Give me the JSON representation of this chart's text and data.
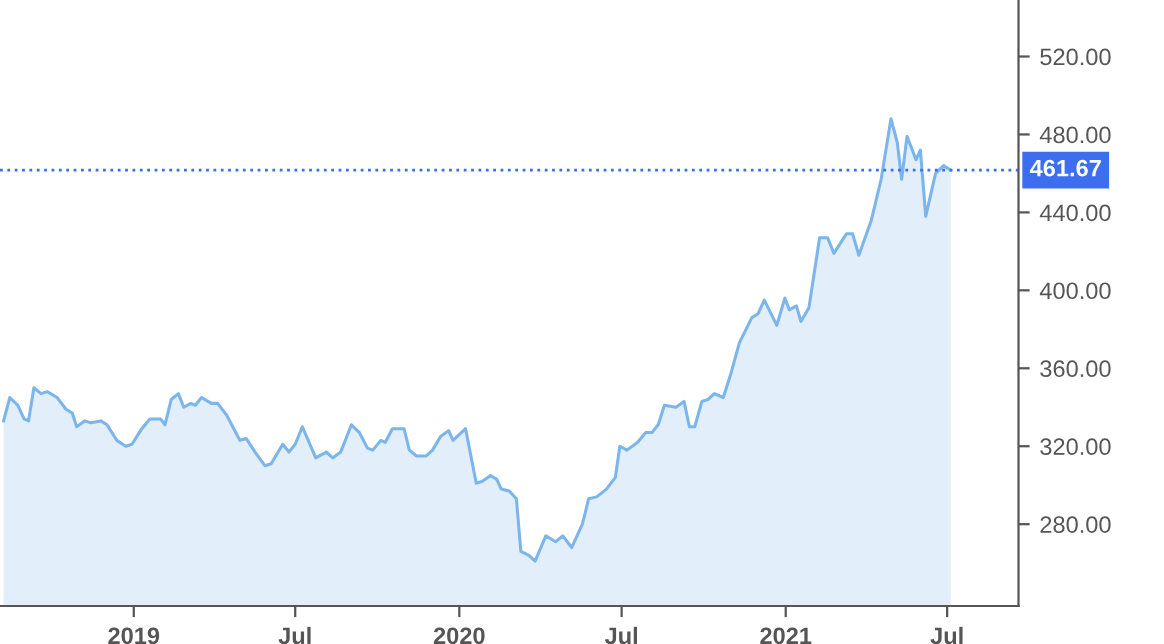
{
  "chart_data": {
    "type": "area",
    "x": [
      "2018-08-08",
      "2018-08-15",
      "2018-08-24",
      "2018-08-31",
      "2018-09-05",
      "2018-09-11",
      "2018-09-19",
      "2018-09-26",
      "2018-10-07",
      "2018-10-17",
      "2018-10-24",
      "2018-10-29",
      "2018-11-07",
      "2018-11-14",
      "2018-11-25",
      "2018-12-02",
      "2018-12-13",
      "2018-12-23",
      "2018-12-30",
      "2019-01-10",
      "2019-01-19",
      "2019-01-31",
      "2019-02-05",
      "2019-02-12",
      "2019-02-20",
      "2019-02-26",
      "2019-03-06",
      "2019-03-11",
      "2019-03-18",
      "2019-03-29",
      "2019-04-05",
      "2019-04-15",
      "2019-04-30",
      "2019-05-07",
      "2019-05-17",
      "2019-05-28",
      "2019-06-04",
      "2019-06-17",
      "2019-06-24",
      "2019-07-01",
      "2019-07-09",
      "2019-07-24",
      "2019-08-05",
      "2019-08-12",
      "2019-08-21",
      "2019-09-02",
      "2019-09-11",
      "2019-09-20",
      "2019-09-26",
      "2019-10-05",
      "2019-10-10",
      "2019-10-18",
      "2019-10-31",
      "2019-11-06",
      "2019-11-14",
      "2019-11-25",
      "2019-12-02",
      "2019-12-11",
      "2019-12-20",
      "2019-12-25",
      "2020-01-08",
      "2020-01-20",
      "2020-01-27",
      "2020-02-05",
      "2020-02-12",
      "2020-02-17",
      "2020-02-26",
      "2020-03-05",
      "2020-03-10",
      "2020-03-19",
      "2020-03-26",
      "2020-04-07",
      "2020-04-18",
      "2020-04-26",
      "2020-05-06",
      "2020-05-18",
      "2020-05-25",
      "2020-06-03",
      "2020-06-14",
      "2020-06-24",
      "2020-06-29",
      "2020-07-07",
      "2020-07-19",
      "2020-07-28",
      "2020-08-04",
      "2020-08-11",
      "2020-08-18",
      "2020-08-31",
      "2020-09-09",
      "2020-09-15",
      "2020-09-21",
      "2020-09-29",
      "2020-10-06",
      "2020-10-13",
      "2020-10-23",
      "2020-11-01",
      "2020-11-10",
      "2020-11-24",
      "2020-12-01",
      "2020-12-08",
      "2020-12-22",
      "2020-12-31",
      "2021-01-05",
      "2021-01-13",
      "2021-01-18",
      "2021-01-27",
      "2021-02-08",
      "2021-02-17",
      "2021-02-24",
      "2021-03-10",
      "2021-03-17",
      "2021-03-24",
      "2021-04-07",
      "2021-04-18",
      "2021-04-29",
      "2021-05-06",
      "2021-05-11",
      "2021-05-17",
      "2021-05-23",
      "2021-05-27",
      "2021-06-01",
      "2021-06-07",
      "2021-06-13",
      "2021-06-18",
      "2021-06-27",
      "2021-07-05"
    ],
    "series": [
      {
        "color": "#7cb5ec",
        "values": [
          333,
          345,
          341,
          334,
          333,
          350,
          347,
          348,
          345,
          339,
          337,
          330,
          333,
          332,
          333,
          331,
          323,
          320,
          321,
          329,
          334,
          334,
          331,
          344,
          347,
          340,
          342,
          341,
          345,
          342,
          342,
          336,
          323,
          324,
          317,
          310,
          311,
          321,
          317,
          321,
          330,
          314,
          317,
          314,
          317,
          331,
          327,
          319,
          318,
          323,
          322,
          329,
          329,
          318,
          315,
          315,
          318,
          325,
          328,
          323,
          329,
          301,
          302,
          305,
          303,
          298,
          297,
          293,
          266,
          264,
          261,
          274,
          271,
          274,
          268,
          280,
          293,
          294,
          298,
          304,
          320,
          318,
          322,
          327,
          327,
          331,
          341,
          340,
          343,
          330,
          330,
          343,
          344,
          347,
          345,
          358,
          373,
          386,
          388,
          395,
          382,
          396,
          390,
          392,
          384,
          391,
          427,
          427,
          419,
          429,
          429,
          418,
          436,
          457,
          488,
          476,
          457,
          479,
          472,
          467,
          472,
          438,
          450,
          460,
          464,
          461.67
        ]
      }
    ],
    "xlim": [
      "2018-08-04",
      "2021-09-19"
    ],
    "xticks": [
      {
        "value": "2019-01-01",
        "label": "2019"
      },
      {
        "value": "2019-07-01",
        "label": "Jul"
      },
      {
        "value": "2020-01-01",
        "label": "2020"
      },
      {
        "value": "2020-07-01",
        "label": "Jul"
      },
      {
        "value": "2021-01-01",
        "label": "2021"
      },
      {
        "value": "2021-07-01",
        "label": "Jul"
      }
    ],
    "ylim": [
      238,
      549
    ],
    "yticks": [
      {
        "value": 280,
        "label": "280.00"
      },
      {
        "value": 320,
        "label": "320.00"
      },
      {
        "value": 360,
        "label": "360.00"
      },
      {
        "value": 400,
        "label": "400.00"
      },
      {
        "value": 440,
        "label": "440.00"
      },
      {
        "value": 480,
        "label": "480.00"
      },
      {
        "value": 520,
        "label": "520.00"
      }
    ],
    "ref_lines": [
      {
        "axis": "y",
        "value": 461.67,
        "label": "461.67",
        "color": "#3d6ef0",
        "line_style": "dotted"
      }
    ],
    "grid": false,
    "line_style": "solid",
    "marker": "none"
  }
}
